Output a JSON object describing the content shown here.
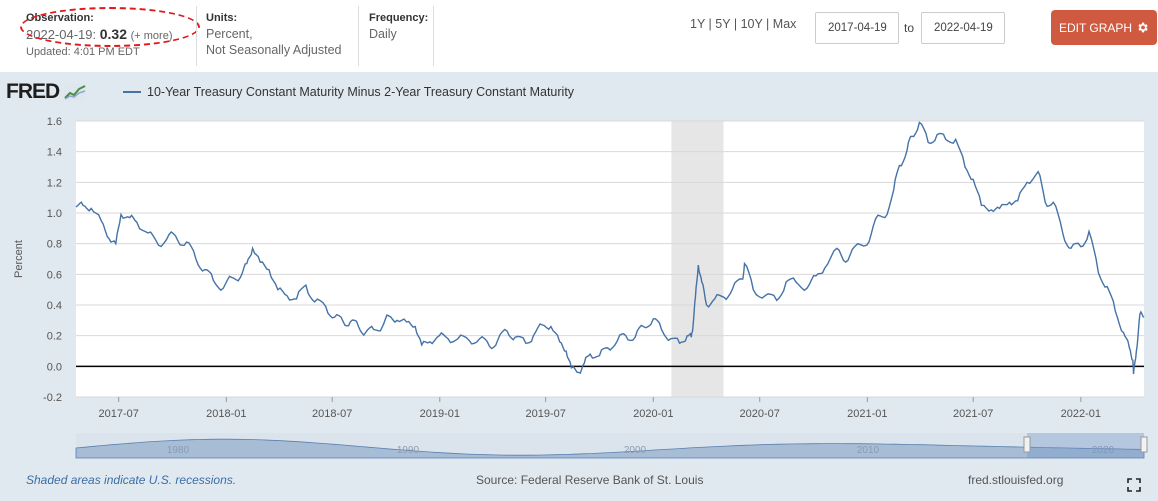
{
  "observation": {
    "label": "Observation:",
    "date": "2022-04-19:",
    "value": "0.32",
    "more": "(+ more)",
    "updated": "Updated: 4:01 PM EDT"
  },
  "units": {
    "label": "Units:",
    "line1": "Percent,",
    "line2": "Not Seasonally Adjusted"
  },
  "frequency": {
    "label": "Frequency:",
    "value": "Daily"
  },
  "ranges": [
    "1Y",
    "5Y",
    "10Y",
    "Max"
  ],
  "date_range": {
    "from": "2017-04-19",
    "to_label": "to",
    "to": "2022-04-19"
  },
  "edit_button": "EDIT GRAPH",
  "logo": "FRED",
  "series_title": "10-Year Treasury Constant Maturity Minus 2-Year Treasury Constant Maturity",
  "footer": {
    "recession_note": "Shaded areas indicate U.S. recessions.",
    "source": "Source: Federal Reserve Bank of St. Louis",
    "site": "fred.stlouisfed.org"
  },
  "colors": {
    "series": "#4572a7",
    "button": "#cf5a3f",
    "recession": "#e6e6e6",
    "annotation": "#e01818"
  },
  "chart_data": {
    "type": "line",
    "ylabel": "Percent",
    "ylim": [
      -0.2,
      1.6
    ],
    "yticks": [
      "1.6",
      "1.4",
      "1.2",
      "1.0",
      "0.8",
      "0.6",
      "0.4",
      "0.2",
      "0.0",
      "-0.2"
    ],
    "xlim": [
      "2017-04-19",
      "2022-04-19"
    ],
    "xticks": [
      "2017-07",
      "2018-01",
      "2018-07",
      "2019-01",
      "2019-07",
      "2020-01",
      "2020-07",
      "2021-01",
      "2021-07",
      "2022-01"
    ],
    "navigator_ticks": [
      "1980",
      "1990",
      "2000",
      "2010",
      "2020"
    ],
    "recessions": [
      [
        "2020-02-01",
        "2020-04-30"
      ]
    ],
    "zero_line": true,
    "series": [
      {
        "name": "10-Year Treasury Constant Maturity Minus 2-Year Treasury Constant Maturity",
        "points": [
          [
            "2017-04-19",
            1.04
          ],
          [
            "2017-05-01",
            1.05
          ],
          [
            "2017-05-15",
            1.03
          ],
          [
            "2017-06-01",
            0.95
          ],
          [
            "2017-06-15",
            0.83
          ],
          [
            "2017-06-26",
            0.8
          ],
          [
            "2017-07-05",
            0.99
          ],
          [
            "2017-07-20",
            0.97
          ],
          [
            "2017-08-01",
            0.94
          ],
          [
            "2017-08-20",
            0.87
          ],
          [
            "2017-09-07",
            0.79
          ],
          [
            "2017-09-25",
            0.86
          ],
          [
            "2017-10-10",
            0.82
          ],
          [
            "2017-10-25",
            0.81
          ],
          [
            "2017-11-10",
            0.7
          ],
          [
            "2017-11-25",
            0.63
          ],
          [
            "2017-12-10",
            0.56
          ],
          [
            "2017-12-27",
            0.51
          ],
          [
            "2018-01-10",
            0.58
          ],
          [
            "2018-01-25",
            0.58
          ],
          [
            "2018-02-05",
            0.67
          ],
          [
            "2018-02-15",
            0.77
          ],
          [
            "2018-02-28",
            0.68
          ],
          [
            "2018-03-15",
            0.63
          ],
          [
            "2018-03-30",
            0.5
          ],
          [
            "2018-04-15",
            0.46
          ],
          [
            "2018-05-01",
            0.44
          ],
          [
            "2018-05-17",
            0.53
          ],
          [
            "2018-06-01",
            0.42
          ],
          [
            "2018-06-20",
            0.39
          ],
          [
            "2018-07-05",
            0.32
          ],
          [
            "2018-07-20",
            0.29
          ],
          [
            "2018-08-01",
            0.29
          ],
          [
            "2018-08-15",
            0.26
          ],
          [
            "2018-08-27",
            0.22
          ],
          [
            "2018-09-10",
            0.24
          ],
          [
            "2018-09-25",
            0.26
          ],
          [
            "2018-10-05",
            0.33
          ],
          [
            "2018-10-20",
            0.3
          ],
          [
            "2018-11-05",
            0.29
          ],
          [
            "2018-11-20",
            0.26
          ],
          [
            "2018-12-01",
            0.14
          ],
          [
            "2018-12-15",
            0.16
          ],
          [
            "2018-12-31",
            0.2
          ],
          [
            "2019-01-15",
            0.18
          ],
          [
            "2019-02-01",
            0.18
          ],
          [
            "2019-02-20",
            0.17
          ],
          [
            "2019-03-10",
            0.18
          ],
          [
            "2019-03-27",
            0.13
          ],
          [
            "2019-04-10",
            0.17
          ],
          [
            "2019-04-26",
            0.23
          ],
          [
            "2019-05-10",
            0.19
          ],
          [
            "2019-05-28",
            0.15
          ],
          [
            "2019-06-10",
            0.2
          ],
          [
            "2019-06-25",
            0.27
          ],
          [
            "2019-07-10",
            0.26
          ],
          [
            "2019-07-25",
            0.16
          ],
          [
            "2019-08-05",
            0.1
          ],
          [
            "2019-08-14",
            -0.01
          ],
          [
            "2019-08-27",
            -0.04
          ],
          [
            "2019-09-05",
            0.02
          ],
          [
            "2019-09-15",
            0.08
          ],
          [
            "2019-10-01",
            0.07
          ],
          [
            "2019-10-15",
            0.12
          ],
          [
            "2019-11-01",
            0.17
          ],
          [
            "2019-11-15",
            0.2
          ],
          [
            "2019-12-01",
            0.19
          ],
          [
            "2019-12-15",
            0.26
          ],
          [
            "2020-01-01",
            0.31
          ],
          [
            "2020-01-15",
            0.24
          ],
          [
            "2020-01-31",
            0.18
          ],
          [
            "2020-02-15",
            0.15
          ],
          [
            "2020-02-28",
            0.2
          ],
          [
            "2020-03-06",
            0.19
          ],
          [
            "2020-03-09",
            0.27
          ],
          [
            "2020-03-13",
            0.45
          ],
          [
            "2020-03-18",
            0.66
          ],
          [
            "2020-03-24",
            0.55
          ],
          [
            "2020-04-01",
            0.4
          ],
          [
            "2020-04-15",
            0.44
          ],
          [
            "2020-05-01",
            0.45
          ],
          [
            "2020-05-15",
            0.5
          ],
          [
            "2020-06-01",
            0.57
          ],
          [
            "2020-06-05",
            0.67
          ],
          [
            "2020-06-20",
            0.5
          ],
          [
            "2020-07-10",
            0.46
          ],
          [
            "2020-07-30",
            0.43
          ],
          [
            "2020-08-15",
            0.55
          ],
          [
            "2020-09-01",
            0.55
          ],
          [
            "2020-09-20",
            0.51
          ],
          [
            "2020-10-05",
            0.59
          ],
          [
            "2020-10-20",
            0.64
          ],
          [
            "2020-11-10",
            0.77
          ],
          [
            "2020-11-25",
            0.68
          ],
          [
            "2020-12-10",
            0.78
          ],
          [
            "2020-12-31",
            0.79
          ],
          [
            "2021-01-15",
            0.96
          ],
          [
            "2021-01-31",
            0.97
          ],
          [
            "2021-02-15",
            1.15
          ],
          [
            "2021-02-25",
            1.31
          ],
          [
            "2021-03-10",
            1.41
          ],
          [
            "2021-03-18",
            1.5
          ],
          [
            "2021-03-31",
            1.59
          ],
          [
            "2021-04-15",
            1.46
          ],
          [
            "2021-04-30",
            1.51
          ],
          [
            "2021-05-15",
            1.48
          ],
          [
            "2021-06-01",
            1.48
          ],
          [
            "2021-06-17",
            1.3
          ],
          [
            "2021-07-01",
            1.22
          ],
          [
            "2021-07-15",
            1.05
          ],
          [
            "2021-08-01",
            1.02
          ],
          [
            "2021-08-15",
            1.03
          ],
          [
            "2021-09-01",
            1.07
          ],
          [
            "2021-09-15",
            1.08
          ],
          [
            "2021-10-01",
            1.2
          ],
          [
            "2021-10-20",
            1.27
          ],
          [
            "2021-11-01",
            1.07
          ],
          [
            "2021-11-15",
            1.07
          ],
          [
            "2021-12-01",
            0.87
          ],
          [
            "2021-12-15",
            0.77
          ],
          [
            "2022-01-01",
            0.78
          ],
          [
            "2022-01-15",
            0.88
          ],
          [
            "2022-01-31",
            0.61
          ],
          [
            "2022-02-15",
            0.52
          ],
          [
            "2022-03-01",
            0.36
          ],
          [
            "2022-03-15",
            0.22
          ],
          [
            "2022-03-25",
            0.12
          ],
          [
            "2022-03-31",
            0.04
          ],
          [
            "2022-04-01",
            -0.05
          ],
          [
            "2022-04-06",
            0.1
          ],
          [
            "2022-04-12",
            0.34
          ],
          [
            "2022-04-19",
            0.32
          ]
        ]
      }
    ]
  }
}
